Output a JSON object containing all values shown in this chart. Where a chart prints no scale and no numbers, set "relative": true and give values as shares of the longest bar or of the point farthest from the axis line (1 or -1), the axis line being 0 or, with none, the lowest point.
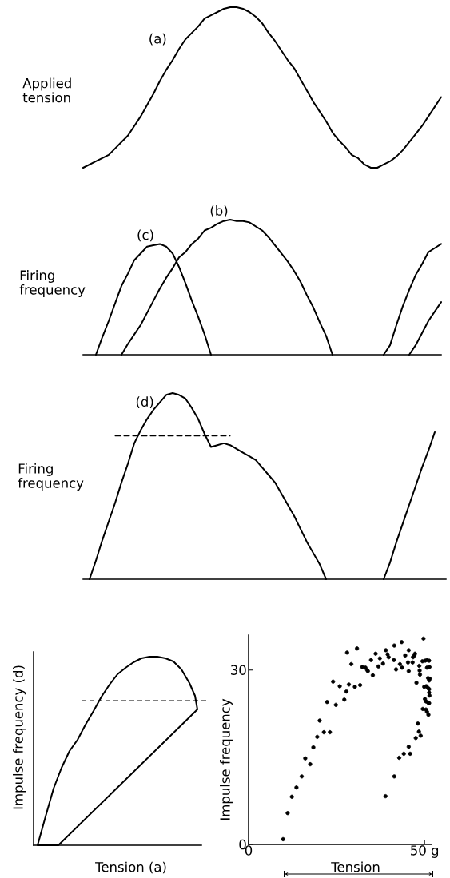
{
  "chart_data": [
    {
      "type": "line",
      "relative": true,
      "ylabel": "Applied tension",
      "categories": [
        null,
        null,
        null,
        null,
        null,
        null,
        null,
        null,
        null,
        null,
        null,
        null,
        null,
        null,
        null,
        null,
        null,
        null,
        null,
        null,
        null,
        null,
        null,
        null,
        null,
        null,
        null,
        null,
        null,
        null,
        null,
        null,
        null,
        null,
        null,
        null,
        null,
        null,
        null,
        null,
        null,
        null,
        null,
        null,
        null,
        null,
        null,
        null,
        null,
        null,
        null,
        null,
        null,
        null,
        null,
        null,
        null
      ],
      "series": [
        {
          "name": "(a)",
          "color": "#000000",
          "values": [
            0.0,
            0.02,
            0.04,
            0.06,
            0.08,
            0.12,
            0.16,
            0.2,
            0.26,
            0.32,
            0.39,
            0.46,
            0.54,
            0.61,
            0.67,
            0.74,
            0.8,
            0.84,
            0.88,
            0.93,
            0.95,
            0.97,
            0.99,
            1.0,
            1.0,
            0.99,
            0.97,
            0.94,
            0.9,
            0.84,
            0.79,
            0.73,
            0.67,
            0.62,
            0.55,
            0.48,
            0.41,
            0.35,
            0.29,
            0.22,
            0.17,
            0.13,
            0.08,
            0.06,
            0.02,
            0.0,
            0.0,
            0.02,
            0.04,
            0.07,
            0.11,
            0.16,
            0.21,
            0.26,
            0.32,
            0.38,
            0.44
          ]
        }
      ]
    },
    {
      "type": "line",
      "relative": true,
      "ylabel": "Firing frequency",
      "categories": [
        null,
        null,
        null,
        null,
        null,
        null,
        null,
        null,
        null,
        null,
        null,
        null,
        null,
        null,
        null,
        null,
        null,
        null,
        null,
        null,
        null,
        null,
        null,
        null,
        null,
        null,
        null,
        null,
        null,
        null,
        null,
        null,
        null,
        null,
        null,
        null,
        null,
        null,
        null,
        null,
        null,
        null,
        null,
        null,
        null,
        null,
        null,
        null,
        null,
        null,
        null,
        null,
        null,
        null,
        null,
        null,
        null
      ],
      "series": [
        {
          "name": "(b)",
          "color": "#000000",
          "values": [
            null,
            null,
            null,
            null,
            null,
            null,
            0,
            0.08,
            0.15,
            0.22,
            0.31,
            0.4,
            0.49,
            0.57,
            0.64,
            0.72,
            0.76,
            0.82,
            0.86,
            0.92,
            0.94,
            0.97,
            0.99,
            1.0,
            0.99,
            0.99,
            0.98,
            0.95,
            0.92,
            0.87,
            0.81,
            0.75,
            0.69,
            0.62,
            0.54,
            0.44,
            0.35,
            0.24,
            0.14,
            0,
            null,
            null,
            null,
            null,
            null,
            null,
            null,
            null,
            null,
            null,
            null,
            0,
            0.07,
            0.16,
            0.25,
            0.32,
            0.39
          ]
        },
        {
          "name": "(c)",
          "color": "#000000",
          "values": [
            null,
            null,
            0,
            0.13,
            0.25,
            0.38,
            0.51,
            0.6,
            0.7,
            0.75,
            0.8,
            0.81,
            0.82,
            0.8,
            0.75,
            0.65,
            0.53,
            0.4,
            0.28,
            0.15,
            0,
            null,
            null,
            null,
            null,
            null,
            null,
            null,
            null,
            null,
            null,
            null,
            null,
            null,
            null,
            null,
            null,
            null,
            null,
            null,
            null,
            null,
            null,
            null,
            null,
            null,
            null,
            0,
            0.07,
            0.22,
            0.36,
            0.48,
            0.59,
            0.67,
            0.76,
            0.79,
            0.82
          ]
        }
      ]
    },
    {
      "type": "line",
      "relative": true,
      "ylabel": "Firing frequency",
      "categories": [
        null,
        null,
        null,
        null,
        null,
        null,
        null,
        null,
        null,
        null,
        null,
        null,
        null,
        null,
        null,
        null,
        null,
        null,
        null,
        null,
        null,
        null,
        null,
        null,
        null,
        null,
        null,
        null,
        null,
        null,
        null,
        null,
        null,
        null,
        null,
        null,
        null,
        null,
        null,
        null,
        null,
        null,
        null,
        null,
        null,
        null,
        null,
        null,
        null,
        null,
        null,
        null,
        null,
        null,
        null,
        null,
        null
      ],
      "series": [
        {
          "name": "(d)",
          "color": "#000000",
          "values": [
            null,
            0,
            0.1,
            0.21,
            0.31,
            0.41,
            0.52,
            0.62,
            0.73,
            0.8,
            0.86,
            0.91,
            0.95,
            0.99,
            1.0,
            0.99,
            0.97,
            0.92,
            0.86,
            0.78,
            0.71,
            0.72,
            0.73,
            0.72,
            0.7,
            0.68,
            0.66,
            0.64,
            0.6,
            0.56,
            0.52,
            0.46,
            0.4,
            0.34,
            0.27,
            0.2,
            0.14,
            0.08,
            0,
            null,
            null,
            null,
            null,
            null,
            null,
            null,
            null,
            0,
            0.09,
            0.2,
            0.3,
            0.4,
            0.5,
            0.6,
            0.69,
            0.79,
            null
          ]
        },
        {
          "color": "#000000",
          "line_style": "dashed",
          "values": [
            null,
            null,
            null,
            null,
            null,
            0.77,
            0.77,
            0.77,
            0.77,
            0.77,
            0.77,
            0.77,
            0.77,
            0.77,
            0.77,
            0.77,
            0.77,
            0.77,
            0.77,
            0.77,
            0.77,
            0.77,
            0.77,
            0.77,
            null,
            null,
            null,
            null,
            null,
            null,
            null,
            null,
            null,
            null,
            null,
            null,
            null,
            null,
            null,
            null,
            null,
            null,
            null,
            null,
            null,
            null,
            null,
            null,
            null,
            null,
            null,
            null,
            null,
            null,
            null,
            null,
            null
          ]
        }
      ]
    },
    {
      "type": "other",
      "xlabel": "Tension (a)",
      "ylabel": "Impulse frequency (d)"
    },
    {
      "type": "scatter",
      "xlabel": "Tension",
      "ylabel": "Impulse frequency",
      "color": "#000000",
      "marker": "circle",
      "xlim": [
        0,
        52
      ],
      "ylim": [
        0,
        36
      ],
      "xticks": [
        0,
        {
          "value": 50,
          "label": "50 g"
        }
      ],
      "yticks": [
        0,
        30
      ],
      "x": [
        9.8,
        11.1,
        12.3,
        13.6,
        15.1,
        16.1,
        17.5,
        18.4,
        19.5,
        20.2,
        21.4,
        23.1,
        22.3,
        24.0,
        24.8,
        25.9,
        27.2,
        27.8,
        28.5,
        28.0,
        29.2,
        30.2,
        30.8,
        31.7,
        32.3,
        33.2,
        33.7,
        33.9,
        34.8,
        35.3,
        36.1,
        36.9,
        37.3,
        38.2,
        39.0,
        39.5,
        39.8,
        41.4,
        41.3,
        41.9,
        43.0,
        43.5,
        43.6,
        44.5,
        45.3,
        45.5,
        45.5,
        46.6,
        46.7,
        47.1,
        47.3,
        47.7,
        49.7,
        48.5,
        48.6,
        48.7,
        49.4,
        50.2,
        50.7,
        51.3,
        51.4,
        50.7,
        51.0,
        51.3,
        51.5,
        49.9,
        50.5,
        51.0,
        51.3,
        51.3,
        51.4,
        50.1,
        50.4,
        51.0,
        51.3,
        49.5,
        50.4,
        50.7,
        51.1,
        48.1,
        48.4,
        48.9,
        47.5,
        45.5,
        45.9,
        44.1,
        42.8,
        41.4,
        38.9
      ],
      "values": [
        0.9,
        5.4,
        8.2,
        9.8,
        11.7,
        14.8,
        13.8,
        16.7,
        18.5,
        21.3,
        19.3,
        19.3,
        24.5,
        28.0,
        24.0,
        27.2,
        24.9,
        26.3,
        27.5,
        33.0,
        31.0,
        27.1,
        33.7,
        27.4,
        30.5,
        30.4,
        30.0,
        29.8,
        31.7,
        29.1,
        32.8,
        30.6,
        32.0,
        31.1,
        33.4,
        32.7,
        32.2,
        34.2,
        31.7,
        30.1,
        31.0,
        34.8,
        30.4,
        32.5,
        31.3,
        29.8,
        33.4,
        31.3,
        32.2,
        32.5,
        32.8,
        27.8,
        35.4,
        30.7,
        29.9,
        29.2,
        31.5,
        31.6,
        31.7,
        31.6,
        30.5,
        30.4,
        28.6,
        28.2,
        28.5,
        27.1,
        27.2,
        26.9,
        26.7,
        26.1,
        25.6,
        25.0,
        24.6,
        24.4,
        24.3,
        23.3,
        23.2,
        22.8,
        22.3,
        20.8,
        19.4,
        18.7,
        18.3,
        16.8,
        15.6,
        15.6,
        14.9,
        11.7,
        8.3
      ]
    }
  ]
}
